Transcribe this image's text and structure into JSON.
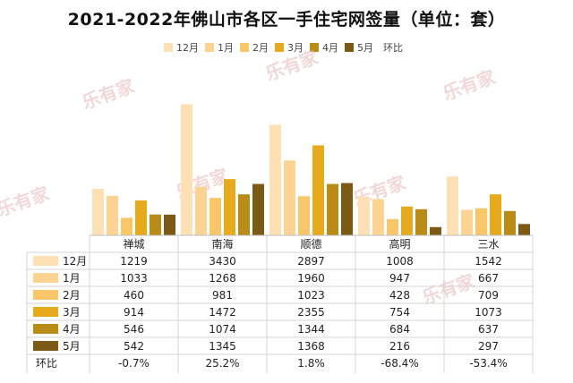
{
  "title": "2021-2022年佛山市各区一手住宅网签量（单位：套）",
  "colors": {
    "12月": "#fde0b4",
    "1月": "#fcd393",
    "2月": "#f9c66a",
    "3月": "#e6aa1c",
    "4月": "#b88c16",
    "5月": "#7a5a14"
  },
  "chart_data": {
    "type": "bar",
    "categories": [
      "禅城",
      "南海",
      "顺德",
      "高明",
      "三水"
    ],
    "series": [
      {
        "name": "12月",
        "values": [
          1219,
          3430,
          2897,
          1008,
          1542
        ]
      },
      {
        "name": "1月",
        "values": [
          1033,
          1268,
          1960,
          947,
          667
        ]
      },
      {
        "name": "2月",
        "values": [
          460,
          981,
          1023,
          428,
          709
        ]
      },
      {
        "name": "3月",
        "values": [
          914,
          1472,
          2355,
          754,
          1073
        ]
      },
      {
        "name": "4月",
        "values": [
          546,
          1074,
          1344,
          684,
          637
        ]
      },
      {
        "name": "5月",
        "values": [
          542,
          1345,
          1368,
          216,
          297
        ]
      }
    ],
    "growth": {
      "name": "环比",
      "values": [
        "-0.7%",
        "25.2%",
        "1.8%",
        "-68.4%",
        "-53.4%"
      ]
    },
    "legend_position": "top"
  },
  "watermark": "乐有家"
}
